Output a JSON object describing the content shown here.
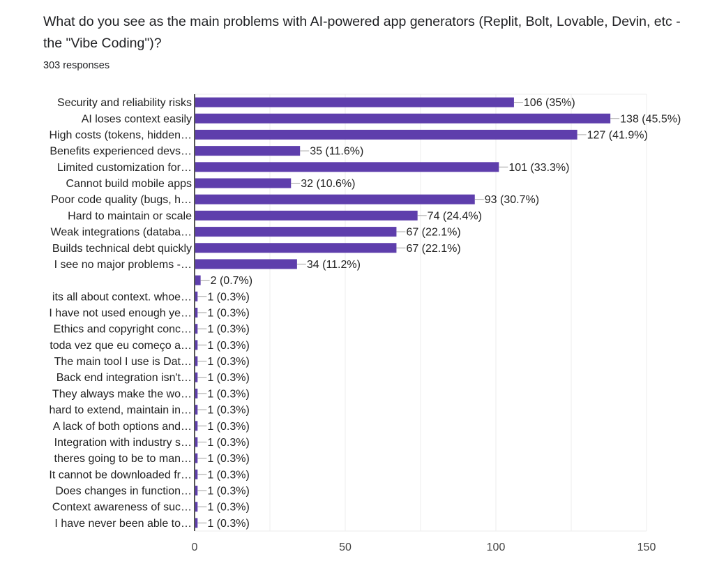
{
  "header": {
    "question": "What do you see as the main problems with AI-powered app generators (Replit, Bolt, Lovable, Devin, etc - the \"Vibe Coding\")?",
    "responses": "303 responses"
  },
  "colors": {
    "bar": "#5e3eac",
    "grid": "#eeeeee",
    "axis": "#555555",
    "connector": "#9e9e9e"
  },
  "chart_data": {
    "type": "bar",
    "orientation": "horizontal",
    "title": "What do you see as the main problems with AI-powered app generators (Replit, Bolt, Lovable, Devin, etc - the \"Vibe Coding\")?",
    "subtitle": "303 responses",
    "xlabel": "",
    "ylabel": "",
    "xlim": [
      0,
      150
    ],
    "xticks": [
      0,
      50,
      100,
      150
    ],
    "grid": true,
    "legend": "none",
    "categories": [
      "Security and reliability risks",
      "AI loses context easily",
      "High costs (tokens, hidden…",
      "Benefits experienced devs…",
      "Limited customization for…",
      "Cannot build mobile apps",
      "Poor code quality (bugs, h…",
      "Hard to maintain or scale",
      "Weak integrations (databa…",
      "Builds technical debt quickly",
      "I see no major problems -…",
      "",
      "its all about context. whoe…",
      "I have not used enough ye…",
      "Ethics and copyright conc…",
      "toda vez que eu começo a…",
      "The main tool I use is Dat…",
      "Back end integration isn't…",
      "They always make the wo…",
      "hard to extend, maintain in…",
      "A lack of both options and…",
      "Integration with industry s…",
      "theres going to be to man…",
      "It cannot be downloaded fr…",
      "Does changes in function…",
      "Context awareness of suc…",
      "I have never been able to…"
    ],
    "values": [
      106,
      138,
      127,
      35,
      101,
      32,
      93,
      74,
      67,
      67,
      34,
      2,
      1,
      1,
      1,
      1,
      1,
      1,
      1,
      1,
      1,
      1,
      1,
      1,
      1,
      1,
      1
    ],
    "data_labels": [
      "106 (35%)",
      "138 (45.5%)",
      "127 (41.9%)",
      "35 (11.6%)",
      "101 (33.3%)",
      "32 (10.6%)",
      "93 (30.7%)",
      "74 (24.4%)",
      "67 (22.1%)",
      "67 (22.1%)",
      "34 (11.2%)",
      "2 (0.7%)",
      "1 (0.3%)",
      "1 (0.3%)",
      "1 (0.3%)",
      "1 (0.3%)",
      "1 (0.3%)",
      "1 (0.3%)",
      "1 (0.3%)",
      "1 (0.3%)",
      "1 (0.3%)",
      "1 (0.3%)",
      "1 (0.3%)",
      "1 (0.3%)",
      "1 (0.3%)",
      "1 (0.3%)",
      "1 (0.3%)"
    ]
  }
}
